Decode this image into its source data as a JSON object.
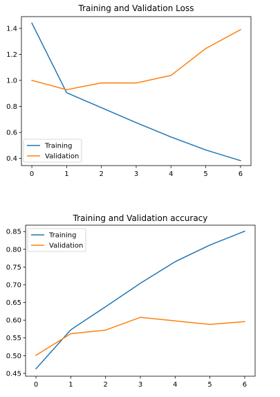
{
  "colors": {
    "training": "#1f77b4",
    "validation": "#ff7f0e"
  },
  "chart_data": [
    {
      "type": "line",
      "title": "Training and Validation Loss",
      "xlabel": "",
      "ylabel": "",
      "x": [
        0,
        1,
        2,
        3,
        4,
        5,
        6
      ],
      "xticks": [
        "0",
        "1",
        "2",
        "3",
        "4",
        "5",
        "6"
      ],
      "xlim": [
        -0.3,
        6.3
      ],
      "ylim": [
        0.345,
        1.49
      ],
      "yticks": [
        "0.4",
        "0.6",
        "0.8",
        "1.0",
        "1.2",
        "1.4"
      ],
      "grid": false,
      "legend_position": "lower-left",
      "series": [
        {
          "name": "Training",
          "values": [
            1.44,
            0.905,
            0.79,
            0.675,
            0.565,
            0.465,
            0.383
          ]
        },
        {
          "name": "Validation",
          "values": [
            1.0,
            0.928,
            0.981,
            0.98,
            1.038,
            1.245,
            1.39
          ]
        }
      ]
    },
    {
      "type": "line",
      "title": "Training and Validation accuracy",
      "xlabel": "",
      "ylabel": "",
      "x": [
        0,
        1,
        2,
        3,
        4,
        5,
        6
      ],
      "xticks": [
        "0",
        "1",
        "2",
        "3",
        "4",
        "5",
        "6"
      ],
      "xlim": [
        -0.3,
        6.3
      ],
      "ylim": [
        0.442,
        0.868
      ],
      "yticks": [
        "0.45",
        "0.50",
        "0.55",
        "0.60",
        "0.65",
        "0.70",
        "0.75",
        "0.80",
        "0.85"
      ],
      "grid": false,
      "legend_position": "upper-left",
      "series": [
        {
          "name": "Training",
          "values": [
            0.463,
            0.573,
            0.638,
            0.704,
            0.765,
            0.812,
            0.851
          ]
        },
        {
          "name": "Validation",
          "values": [
            0.501,
            0.562,
            0.572,
            0.608,
            0.598,
            0.588,
            0.596
          ]
        }
      ]
    }
  ]
}
